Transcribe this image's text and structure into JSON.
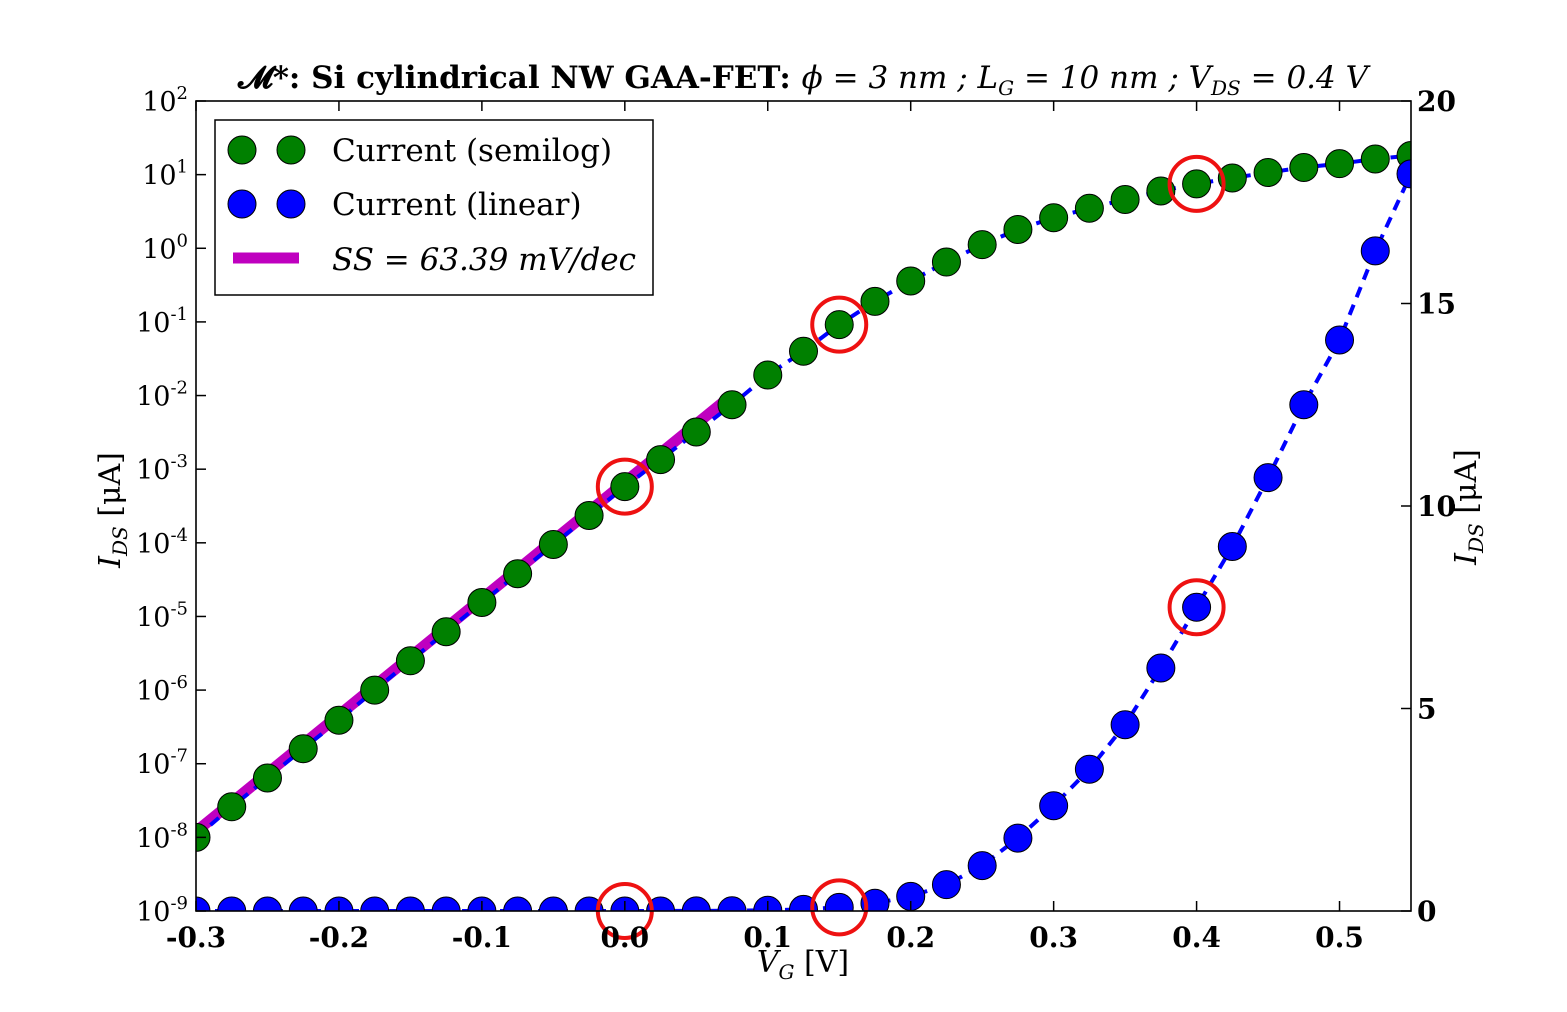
{
  "chart_data": {
    "type": "scatter",
    "title": "𝓜*: Si cylindrical NW GAA-FET: ϕ = 3 nm ; L_G = 10 nm ; V_DS = 0.4 V",
    "title_parts": {
      "m": "𝓜*: Si cylindrical NW GAA-FET: ",
      "phi": "ϕ = 3 nm ; L",
      "lg_sub": "G",
      "lg_rest": " = 10 nm ; V",
      "vds_sub": "DS",
      "vds_rest": " = 0.4 V"
    },
    "xlabel": "V_G [V]",
    "xlabel_parts": {
      "main": "V",
      "sub": "G",
      "rest": " [V]"
    },
    "ylabel_left": "I_DS [μA]",
    "ylabel_right": "I_DS [μA]",
    "ylabel_parts": {
      "main": "I",
      "sub": "DS",
      "rest": " [μA]"
    },
    "xlim": [
      -0.3,
      0.55
    ],
    "ylim_left_log10": [
      -9,
      2
    ],
    "ylim_right": [
      0,
      20
    ],
    "x_ticks": [
      "-0.3",
      "-0.2",
      "-0.1",
      "0.0",
      "0.1",
      "0.2",
      "0.3",
      "0.4",
      "0.5"
    ],
    "y_left_tick_exponents": [
      "-9",
      "-8",
      "-7",
      "-6",
      "-5",
      "-4",
      "-3",
      "-2",
      "-1",
      "0",
      "1",
      "2"
    ],
    "y_left_tick_base": "10",
    "y_right_ticks": [
      "0",
      "5",
      "10",
      "15",
      "20"
    ],
    "legend_position": "top-left",
    "legend": {
      "semilog": "Current (semilog)",
      "linear": "Current (linear)",
      "fit": "SS = 63.39 mV/dec"
    },
    "colors": {
      "semilog": "#008000",
      "linear": "#0000ff",
      "fit": "#bf00bf",
      "highlight": "#ee1111",
      "dash": "#0000ff"
    },
    "x": [
      -0.3,
      -0.275,
      -0.25,
      -0.225,
      -0.2,
      -0.175,
      -0.15,
      -0.125,
      -0.1,
      -0.075,
      -0.05,
      -0.025,
      0.0,
      0.025,
      0.05,
      0.075,
      0.1,
      0.125,
      0.15,
      0.175,
      0.2,
      0.225,
      0.25,
      0.275,
      0.3,
      0.325,
      0.35,
      0.375,
      0.4,
      0.425,
      0.45,
      0.475,
      0.5,
      0.525,
      0.55
    ],
    "series": [
      {
        "name": "Current (semilog)",
        "axis": "left-log",
        "values": [
          1e-08,
          2.6e-08,
          6.4e-08,
          1.6e-07,
          3.9e-07,
          1e-06,
          2.5e-06,
          6.2e-06,
          1.55e-05,
          3.8e-05,
          9.5e-05,
          0.000235,
          0.00058,
          0.00135,
          0.0032,
          0.0075,
          0.019,
          0.04,
          0.092,
          0.19,
          0.36,
          0.65,
          1.12,
          1.8,
          2.6,
          3.5,
          4.6,
          6.0,
          7.5,
          9.0,
          10.7,
          12.5,
          14.1,
          16.3,
          18.2
        ]
      },
      {
        "name": "Current (linear)",
        "axis": "right-linear",
        "values": [
          0,
          0,
          0,
          0,
          0,
          0,
          0,
          0,
          0,
          0,
          0,
          0,
          0.0006,
          0.0013,
          0.003,
          0.007,
          0.019,
          0.04,
          0.09,
          0.19,
          0.36,
          0.65,
          1.12,
          1.8,
          2.6,
          3.5,
          4.6,
          6.0,
          7.5,
          9.0,
          10.7,
          12.5,
          14.1,
          16.3,
          18.2
        ]
      }
    ],
    "fit_line": {
      "name": "SS = 63.39 mV/dec",
      "x": [
        -0.3,
        0.07
      ],
      "y": [
        1.2e-08,
        0.0085
      ]
    },
    "highlighted_points": [
      {
        "x": 0.0,
        "series": "Current (semilog)"
      },
      {
        "x": 0.15,
        "series": "Current (semilog)"
      },
      {
        "x": 0.4,
        "series": "Current (semilog)"
      },
      {
        "x": 0.0,
        "series": "Current (linear)"
      },
      {
        "x": 0.15,
        "series": "Current (linear)"
      },
      {
        "x": 0.4,
        "series": "Current (linear)"
      }
    ]
  }
}
